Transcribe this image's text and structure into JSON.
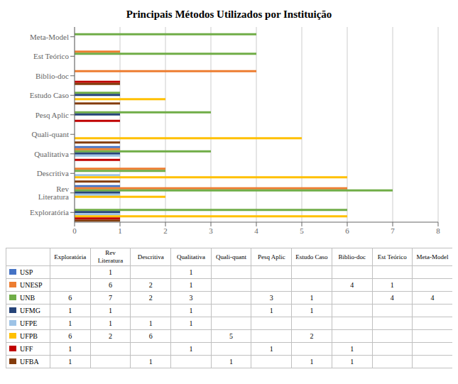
{
  "chart_data": {
    "type": "bar",
    "orientation": "horizontal",
    "title": "Principais Métodos Utilizados por Instituição",
    "categories": [
      "Exploratória",
      "Rev Literatura",
      "Descritiva",
      "Qualitativa",
      "Quali-quant",
      "Pesq Aplic",
      "Estudo Caso",
      "Biblio-doc",
      "Est Teórico",
      "Meta-Model"
    ],
    "series": [
      {
        "name": "USP",
        "color": "#4472C4",
        "values": [
          0,
          1,
          0,
          1,
          0,
          0,
          0,
          0,
          0,
          0
        ]
      },
      {
        "name": "UNESP",
        "color": "#ED7D31",
        "values": [
          0,
          6,
          2,
          1,
          0,
          0,
          0,
          4,
          1,
          0
        ]
      },
      {
        "name": "UNB",
        "color": "#70AD47",
        "values": [
          6,
          7,
          2,
          3,
          0,
          3,
          1,
          0,
          4,
          4
        ]
      },
      {
        "name": "UFMG",
        "color": "#264478",
        "values": [
          1,
          1,
          0,
          1,
          0,
          1,
          1,
          0,
          0,
          0
        ]
      },
      {
        "name": "UFPE",
        "color": "#9DC3E6",
        "values": [
          1,
          1,
          1,
          1,
          0,
          0,
          0,
          0,
          0,
          0
        ]
      },
      {
        "name": "UFPB",
        "color": "#FFC000",
        "values": [
          6,
          2,
          6,
          0,
          5,
          0,
          2,
          0,
          0,
          0
        ]
      },
      {
        "name": "UFF",
        "color": "#C00000",
        "values": [
          1,
          0,
          0,
          1,
          0,
          1,
          0,
          1,
          0,
          0
        ]
      },
      {
        "name": "UFBA",
        "color": "#843C0C",
        "values": [
          1,
          0,
          1,
          0,
          1,
          0,
          1,
          1,
          0,
          0
        ]
      }
    ],
    "xlim": [
      0,
      8
    ],
    "xticks": [
      0,
      1,
      2,
      3,
      4,
      5,
      6,
      7,
      8
    ],
    "grid": "x"
  }
}
